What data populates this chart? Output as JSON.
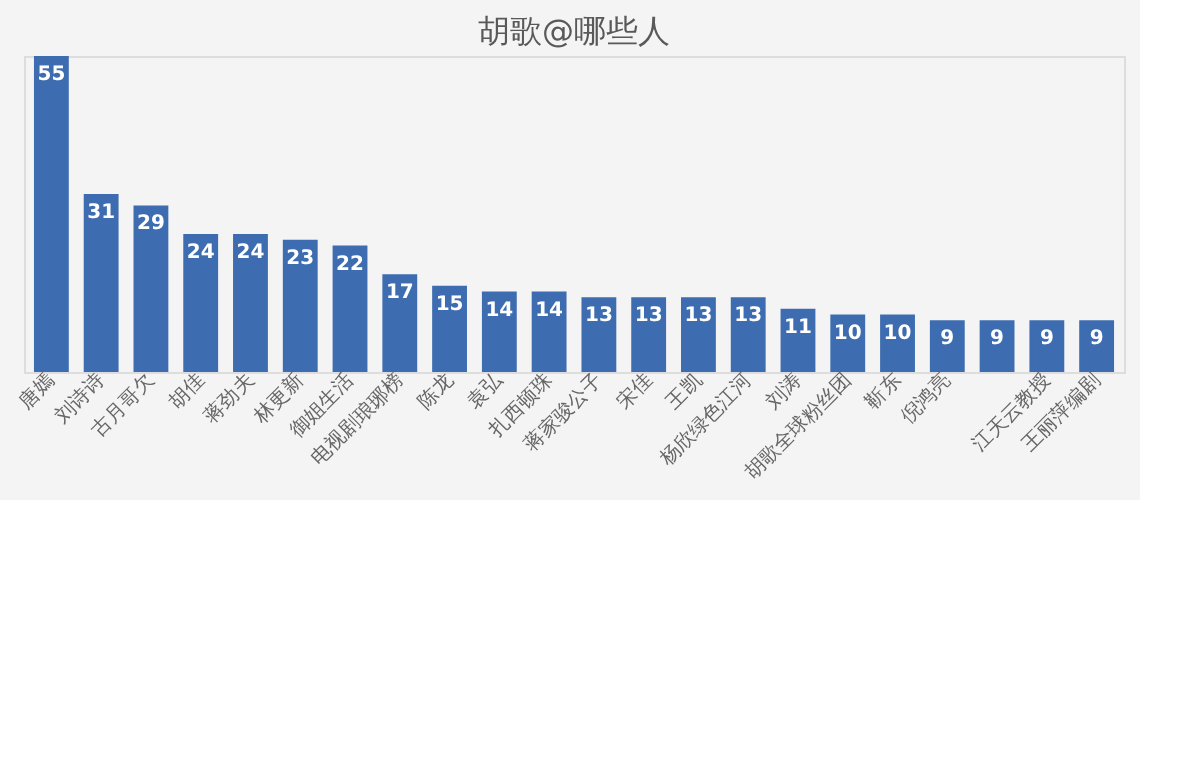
{
  "chart_data": {
    "type": "bar",
    "title": "胡歌@哪些人",
    "categories": [
      "唐嫣",
      "刘诗诗",
      "古月哥欠",
      "胡佳",
      "蒋劲夫",
      "林更新",
      "御姐生活",
      "电视剧琅琊榜",
      "陈龙",
      "袁弘",
      "扎西顿珠",
      "蒋家骏公子",
      "宋佳",
      "王凯",
      "杨欣绿色江河",
      "刘涛",
      "胡歌全球粉丝团",
      "靳东",
      "倪鸿亮",
      null,
      "江天云教授",
      "王丽萍编剧"
    ],
    "values": [
      55,
      31,
      29,
      24,
      24,
      23,
      22,
      17,
      15,
      14,
      14,
      13,
      13,
      13,
      13,
      11,
      10,
      10,
      9,
      9,
      9,
      9
    ],
    "color": "#3d6cb0",
    "data_labels": true,
    "tick_labels": "x"
  }
}
